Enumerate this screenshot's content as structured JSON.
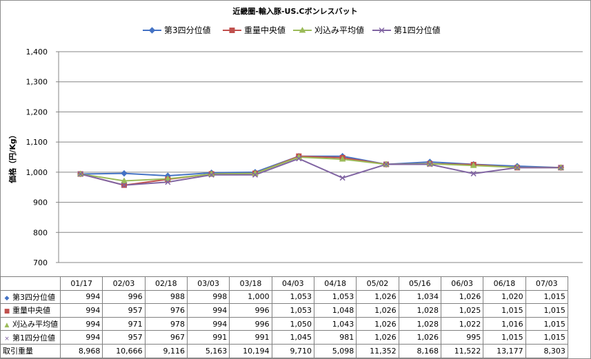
{
  "chart_data": {
    "type": "line",
    "title": "近畿圏-輸入豚-US.Cボンレスバット",
    "ylabel": "価格（円/Kg）",
    "xlabel": "",
    "ylim": [
      700,
      1400
    ],
    "yticks": [
      "1,400",
      "1,300",
      "1,200",
      "1,100",
      "1,000",
      "900",
      "800",
      "700"
    ],
    "categories": [
      "01/17",
      "02/03",
      "02/18",
      "03/03",
      "03/18",
      "04/03",
      "04/18",
      "05/02",
      "05/16",
      "06/03",
      "06/18",
      "07/03"
    ],
    "grid": true,
    "legend_position": "top",
    "series": [
      {
        "name": "第3四分位値",
        "color": "#4472c4",
        "marker": "diamond",
        "values": [
          994,
          996,
          988,
          998,
          1000,
          1053,
          1053,
          1026,
          1034,
          1026,
          1020,
          1015
        ]
      },
      {
        "name": "重量中央値",
        "color": "#c0504d",
        "marker": "square",
        "values": [
          994,
          957,
          976,
          994,
          996,
          1053,
          1048,
          1026,
          1028,
          1025,
          1015,
          1015
        ]
      },
      {
        "name": "刈込み平均値",
        "color": "#9bbb59",
        "marker": "triangle",
        "values": [
          994,
          971,
          978,
          994,
          996,
          1050,
          1043,
          1026,
          1028,
          1022,
          1016,
          1015
        ]
      },
      {
        "name": "第1四分位値",
        "color": "#8064a2",
        "marker": "x",
        "values": [
          994,
          957,
          967,
          991,
          991,
          1045,
          981,
          1026,
          1026,
          995,
          1015,
          1015
        ]
      }
    ],
    "table": {
      "rows": [
        {
          "label": "第3四分位値",
          "marker_glyph": "◆",
          "color": "#4472c4",
          "cells": [
            "994",
            "996",
            "988",
            "998",
            "1,000",
            "1,053",
            "1,053",
            "1,026",
            "1,034",
            "1,026",
            "1,020",
            "1,015"
          ]
        },
        {
          "label": "重量中央値",
          "marker_glyph": "■",
          "color": "#c0504d",
          "cells": [
            "994",
            "957",
            "976",
            "994",
            "996",
            "1,053",
            "1,048",
            "1,026",
            "1,028",
            "1,025",
            "1,015",
            "1,015"
          ]
        },
        {
          "label": "刈込み平均値",
          "marker_glyph": "▲",
          "color": "#9bbb59",
          "cells": [
            "994",
            "971",
            "978",
            "994",
            "996",
            "1,050",
            "1,043",
            "1,026",
            "1,028",
            "1,022",
            "1,016",
            "1,015"
          ]
        },
        {
          "label": "第1四分位値",
          "marker_glyph": "×",
          "color": "#8064a2",
          "cells": [
            "994",
            "957",
            "967",
            "991",
            "991",
            "1,045",
            "981",
            "1,026",
            "1,026",
            "995",
            "1,015",
            "1,015"
          ]
        },
        {
          "label": "取引重量",
          "marker_glyph": "",
          "color": "#000000",
          "cells": [
            "8,968",
            "10,666",
            "9,116",
            "5,163",
            "10,194",
            "9,710",
            "5,098",
            "11,352",
            "8,168",
            "11,522",
            "13,177",
            "8,303"
          ]
        }
      ]
    }
  }
}
